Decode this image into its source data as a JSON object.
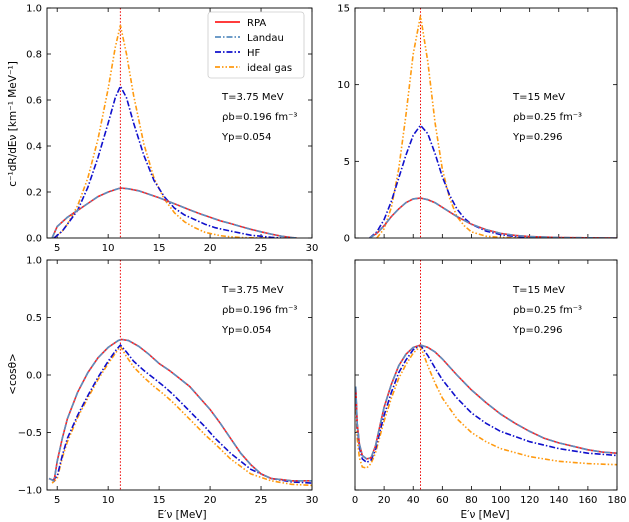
{
  "figure": {
    "ylabel_top": "c⁻¹dR/dEν [km⁻¹ MeV⁻¹]",
    "ylabel_bottom": "<cosθ>",
    "xlabel": "E′ν [MeV]"
  },
  "legend": [
    "RPA",
    "Landau",
    "HF",
    "ideal gas"
  ],
  "series_style": {
    "RPA": {
      "color": "#ff2020",
      "dash": "none"
    },
    "Landau": {
      "color": "#5a8fc0",
      "dash": "6,2,1.5,2"
    },
    "HF": {
      "color": "#1010cc",
      "dash": "6,2,1.5,2"
    },
    "ideal gas": {
      "color": "#ff9a10",
      "dash": "5,2,1.5,2,1.5,2"
    }
  },
  "chart_data": [
    {
      "type": "line",
      "panel": "top-left",
      "xlim": [
        4,
        30
      ],
      "ylim": [
        0,
        1.0
      ],
      "xticks": [
        5,
        10,
        15,
        20,
        25,
        30
      ],
      "yticks": [
        "0.0",
        "0.2",
        "0.4",
        "0.6",
        "0.8",
        "1.0"
      ],
      "vline": 11.2,
      "annotation": [
        "T=3.75 MeV",
        "ρb=0.196 fm⁻³",
        "Yp=0.054"
      ],
      "series": [
        {
          "name": "RPA",
          "x": [
            4.5,
            5,
            6,
            7,
            8,
            9,
            10,
            11,
            11.3,
            12,
            13,
            14,
            15,
            16,
            17,
            18,
            19,
            20,
            21,
            22,
            23,
            24,
            25,
            26,
            27,
            28,
            28.5
          ],
          "values": [
            0,
            0.05,
            0.09,
            0.12,
            0.15,
            0.18,
            0.2,
            0.215,
            0.217,
            0.214,
            0.205,
            0.19,
            0.175,
            0.158,
            0.14,
            0.122,
            0.105,
            0.09,
            0.075,
            0.063,
            0.05,
            0.038,
            0.027,
            0.017,
            0.008,
            0.002,
            0
          ]
        },
        {
          "name": "Landau",
          "x": [
            4.5,
            5,
            6,
            7,
            8,
            9,
            10,
            11,
            11.3,
            12,
            13,
            14,
            15,
            16,
            17,
            18,
            19,
            20,
            21,
            22,
            23,
            24,
            25,
            26,
            27,
            28,
            28.5
          ],
          "values": [
            0,
            0.05,
            0.09,
            0.12,
            0.15,
            0.18,
            0.2,
            0.215,
            0.217,
            0.214,
            0.205,
            0.19,
            0.175,
            0.158,
            0.14,
            0.122,
            0.105,
            0.09,
            0.075,
            0.063,
            0.05,
            0.038,
            0.027,
            0.017,
            0.008,
            0.002,
            0
          ]
        },
        {
          "name": "HF",
          "x": [
            4.7,
            5.5,
            6,
            7,
            8,
            9,
            10,
            10.7,
            11.2,
            11.8,
            12.5,
            13.5,
            14.5,
            15.5,
            16.5,
            17.5,
            18.5,
            19.5,
            20.5,
            22,
            24,
            26,
            27
          ],
          "values": [
            0,
            0.03,
            0.06,
            0.12,
            0.22,
            0.35,
            0.5,
            0.61,
            0.66,
            0.61,
            0.5,
            0.36,
            0.25,
            0.18,
            0.13,
            0.1,
            0.08,
            0.06,
            0.045,
            0.03,
            0.012,
            0.003,
            0
          ]
        },
        {
          "name": "ideal gas",
          "x": [
            4.7,
            5.5,
            6,
            7,
            8,
            9,
            10,
            10.7,
            11.2,
            11.8,
            12.5,
            13.5,
            14.5,
            15.5,
            16.5,
            17.5,
            18.5,
            19.5,
            21,
            22,
            23,
            24,
            25.5
          ],
          "values": [
            0,
            0.03,
            0.06,
            0.14,
            0.26,
            0.43,
            0.65,
            0.83,
            0.925,
            0.8,
            0.62,
            0.41,
            0.26,
            0.17,
            0.11,
            0.07,
            0.045,
            0.025,
            0.01,
            0.005,
            0.002,
            0.001,
            0
          ]
        }
      ]
    },
    {
      "type": "line",
      "panel": "top-right",
      "xlim": [
        0,
        180
      ],
      "ylim": [
        0,
        15
      ],
      "xticks": [],
      "yticks": [
        "0",
        "5",
        "10",
        "15"
      ],
      "vline": 45,
      "annotation": [
        "T=15 MeV",
        "ρb=0.25 fm⁻³",
        "Yp=0.296"
      ],
      "series": [
        {
          "name": "RPA",
          "x": [
            10,
            15,
            20,
            25,
            30,
            35,
            40,
            45,
            50,
            55,
            60,
            65,
            70,
            80,
            90,
            100,
            110,
            120,
            140,
            160,
            180
          ],
          "values": [
            0,
            0.3,
            0.8,
            1.4,
            1.9,
            2.3,
            2.55,
            2.6,
            2.5,
            2.3,
            2.0,
            1.7,
            1.4,
            0.9,
            0.55,
            0.3,
            0.17,
            0.09,
            0.03,
            0.01,
            0
          ]
        },
        {
          "name": "Landau",
          "x": [
            10,
            15,
            20,
            25,
            30,
            35,
            40,
            45,
            50,
            55,
            60,
            65,
            70,
            80,
            90,
            100,
            110,
            120,
            140,
            160,
            180
          ],
          "values": [
            0,
            0.3,
            0.8,
            1.4,
            1.9,
            2.3,
            2.55,
            2.6,
            2.5,
            2.3,
            2.0,
            1.7,
            1.4,
            0.9,
            0.55,
            0.3,
            0.17,
            0.09,
            0.03,
            0.01,
            0
          ]
        },
        {
          "name": "HF",
          "x": [
            10,
            15,
            20,
            25,
            30,
            35,
            40,
            45,
            50,
            55,
            60,
            65,
            70,
            75,
            80,
            90,
            100,
            110,
            120,
            140,
            160
          ],
          "values": [
            0,
            0.4,
            1.2,
            2.4,
            3.9,
            5.4,
            6.7,
            7.35,
            6.8,
            5.5,
            4.0,
            2.8,
            1.9,
            1.3,
            0.9,
            0.45,
            0.22,
            0.1,
            0.05,
            0.01,
            0
          ]
        },
        {
          "name": "ideal gas",
          "x": [
            15,
            20,
            25,
            30,
            35,
            40,
            45,
            50,
            55,
            60,
            65,
            70,
            75,
            80,
            90,
            100,
            110,
            120,
            130
          ],
          "values": [
            0,
            0.6,
            2.0,
            4.5,
            8.0,
            12.0,
            14.5,
            11.5,
            7.5,
            4.5,
            2.6,
            1.4,
            0.8,
            0.4,
            0.12,
            0.04,
            0.01,
            0.003,
            0
          ]
        }
      ]
    },
    {
      "type": "line",
      "panel": "bottom-left",
      "xlim": [
        4,
        30
      ],
      "ylim": [
        -1.0,
        1.0
      ],
      "xticks": [
        "5",
        "10",
        "15",
        "20",
        "25",
        "30"
      ],
      "yticks": [
        "−1.0",
        "−0.5",
        "0.0",
        "0.5",
        "1.0"
      ],
      "vline": 11.2,
      "annotation": [
        "T=3.75 MeV",
        "ρb=0.196 fm⁻³",
        "Yp=0.054"
      ],
      "series": [
        {
          "name": "RPA",
          "x": [
            4.2,
            4.7,
            5,
            5.5,
            6,
            7,
            8,
            9,
            10,
            11,
            11.3,
            12,
            13,
            14,
            15,
            16,
            17,
            18,
            19,
            20,
            21,
            22,
            23,
            24,
            25,
            26,
            27,
            28,
            29,
            30
          ],
          "values": [
            -0.9,
            -0.92,
            -0.75,
            -0.55,
            -0.38,
            -0.15,
            0.02,
            0.15,
            0.24,
            0.3,
            0.31,
            0.3,
            0.25,
            0.18,
            0.1,
            0.04,
            -0.03,
            -0.1,
            -0.2,
            -0.3,
            -0.42,
            -0.55,
            -0.68,
            -0.78,
            -0.86,
            -0.9,
            -0.91,
            -0.92,
            -0.92,
            -0.92
          ]
        },
        {
          "name": "Landau",
          "x": [
            4.2,
            4.7,
            5,
            5.5,
            6,
            7,
            8,
            9,
            10,
            11,
            11.3,
            12,
            13,
            14,
            15,
            16,
            17,
            18,
            19,
            20,
            21,
            22,
            23,
            24,
            25,
            26,
            27,
            28,
            29,
            30
          ],
          "values": [
            -0.9,
            -0.92,
            -0.75,
            -0.55,
            -0.38,
            -0.15,
            0.02,
            0.15,
            0.24,
            0.3,
            0.31,
            0.3,
            0.25,
            0.18,
            0.1,
            0.04,
            -0.03,
            -0.1,
            -0.2,
            -0.3,
            -0.42,
            -0.55,
            -0.68,
            -0.78,
            -0.86,
            -0.9,
            -0.91,
            -0.92,
            -0.92,
            -0.92
          ]
        },
        {
          "name": "HF",
          "x": [
            4.5,
            5,
            5.5,
            6,
            7,
            8,
            9,
            10,
            10.8,
            11.2,
            11.8,
            12.5,
            13.5,
            14.5,
            15.5,
            16.5,
            17.5,
            18.5,
            19.5,
            20.5,
            22,
            24,
            26,
            28,
            30
          ],
          "values": [
            -0.92,
            -0.88,
            -0.7,
            -0.55,
            -0.35,
            -0.18,
            -0.02,
            0.12,
            0.22,
            0.26,
            0.2,
            0.12,
            0.04,
            -0.03,
            -0.1,
            -0.18,
            -0.27,
            -0.36,
            -0.45,
            -0.55,
            -0.68,
            -0.82,
            -0.9,
            -0.93,
            -0.94
          ]
        },
        {
          "name": "ideal gas",
          "x": [
            4.5,
            5,
            5.5,
            6,
            7,
            8,
            9,
            10,
            10.8,
            11.2,
            11.8,
            12.5,
            13.5,
            14.5,
            15.5,
            16.5,
            17.5,
            18.5,
            19.5,
            20.5,
            22,
            24,
            26,
            28,
            30
          ],
          "values": [
            -0.94,
            -0.9,
            -0.72,
            -0.58,
            -0.37,
            -0.2,
            -0.04,
            0.1,
            0.2,
            0.25,
            0.16,
            0.07,
            -0.02,
            -0.1,
            -0.17,
            -0.25,
            -0.34,
            -0.43,
            -0.52,
            -0.6,
            -0.73,
            -0.86,
            -0.92,
            -0.95,
            -0.96
          ]
        }
      ]
    },
    {
      "type": "line",
      "panel": "bottom-right",
      "xlim": [
        0,
        180
      ],
      "ylim": [
        -1.0,
        1.0
      ],
      "xticks": [
        "0",
        "20",
        "40",
        "60",
        "80",
        "100",
        "120",
        "140",
        "160",
        "180"
      ],
      "yticks": [],
      "vline": 45,
      "annotation": [
        "T=15 MeV",
        "ρb=0.25 fm⁻³",
        "Yp=0.296"
      ],
      "series": [
        {
          "name": "RPA",
          "x": [
            0.5,
            1.5,
            3,
            5,
            8,
            11,
            14,
            17,
            20,
            25,
            30,
            35,
            40,
            45,
            50,
            55,
            60,
            70,
            80,
            90,
            100,
            110,
            120,
            130,
            140,
            150,
            160,
            170,
            180
          ],
          "values": [
            -0.1,
            -0.42,
            -0.6,
            -0.7,
            -0.73,
            -0.72,
            -0.62,
            -0.45,
            -0.28,
            -0.08,
            0.08,
            0.18,
            0.24,
            0.26,
            0.24,
            0.2,
            0.14,
            0.0,
            -0.13,
            -0.24,
            -0.34,
            -0.42,
            -0.49,
            -0.55,
            -0.59,
            -0.62,
            -0.65,
            -0.67,
            -0.68
          ]
        },
        {
          "name": "Landau",
          "x": [
            0.5,
            1.5,
            3,
            5,
            8,
            11,
            14,
            17,
            20,
            25,
            30,
            35,
            40,
            45,
            50,
            55,
            60,
            70,
            80,
            90,
            100,
            110,
            120,
            130,
            140,
            150,
            160,
            170,
            180
          ],
          "values": [
            -0.1,
            -0.42,
            -0.6,
            -0.7,
            -0.73,
            -0.72,
            -0.62,
            -0.45,
            -0.28,
            -0.08,
            0.08,
            0.18,
            0.24,
            0.26,
            0.24,
            0.2,
            0.14,
            0.0,
            -0.13,
            -0.24,
            -0.34,
            -0.42,
            -0.49,
            -0.55,
            -0.59,
            -0.62,
            -0.65,
            -0.67,
            -0.68
          ]
        },
        {
          "name": "HF",
          "x": [
            0.5,
            1.5,
            3,
            5,
            8,
            11,
            14,
            17,
            20,
            25,
            30,
            35,
            40,
            45,
            50,
            55,
            60,
            70,
            80,
            90,
            100,
            120,
            140,
            160,
            180
          ],
          "values": [
            -0.12,
            -0.45,
            -0.63,
            -0.73,
            -0.76,
            -0.74,
            -0.65,
            -0.5,
            -0.35,
            -0.15,
            0.02,
            0.13,
            0.22,
            0.26,
            0.17,
            0.06,
            -0.04,
            -0.2,
            -0.33,
            -0.42,
            -0.49,
            -0.58,
            -0.64,
            -0.68,
            -0.7
          ]
        },
        {
          "name": "ideal gas",
          "x": [
            0.5,
            1.5,
            3,
            5,
            8,
            11,
            14,
            17,
            20,
            25,
            30,
            35,
            40,
            45,
            50,
            55,
            60,
            70,
            80,
            90,
            100,
            120,
            140,
            160,
            180
          ],
          "values": [
            -0.18,
            -0.55,
            -0.72,
            -0.8,
            -0.81,
            -0.77,
            -0.68,
            -0.54,
            -0.4,
            -0.2,
            -0.03,
            0.09,
            0.19,
            0.25,
            0.08,
            -0.07,
            -0.2,
            -0.38,
            -0.5,
            -0.58,
            -0.64,
            -0.71,
            -0.75,
            -0.77,
            -0.78
          ]
        }
      ]
    }
  ]
}
